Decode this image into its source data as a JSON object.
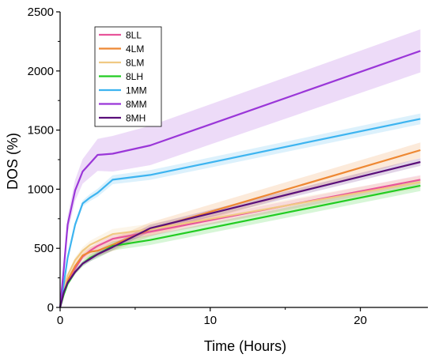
{
  "chart_data": {
    "type": "line",
    "xlabel": "Time (Hours)",
    "ylabel": "DOS (%)",
    "xlim": [
      0,
      24.5
    ],
    "ylim": [
      0,
      2500
    ],
    "xticks": [
      0,
      10,
      20
    ],
    "yticks": [
      0,
      500,
      1000,
      1500,
      2000,
      2500
    ],
    "grid": false,
    "legend_position": "top-left",
    "series": [
      {
        "name": "8LL",
        "color": "#e8549a",
        "band": 30,
        "x": [
          0,
          0.25,
          0.5,
          1,
          1.5,
          2,
          2.5,
          3.5,
          6,
          24
        ],
        "y": [
          0,
          130,
          220,
          330,
          430,
          480,
          520,
          580,
          640,
          1080
        ]
      },
      {
        "name": "4LM",
        "color": "#ee8833",
        "band": 50,
        "x": [
          0,
          0.25,
          0.5,
          1,
          1.5,
          2,
          2.5,
          3.5,
          6,
          24
        ],
        "y": [
          0,
          140,
          230,
          350,
          440,
          470,
          480,
          530,
          660,
          1330
        ]
      },
      {
        "name": "8LM",
        "color": "#f0c983",
        "band": 40,
        "x": [
          0,
          0.25,
          0.5,
          1,
          1.5,
          2,
          2.5,
          3.5,
          6,
          24
        ],
        "y": [
          0,
          160,
          270,
          400,
          480,
          530,
          560,
          620,
          660,
          1060
        ]
      },
      {
        "name": "8LH",
        "color": "#22cc22",
        "band": 35,
        "x": [
          0,
          0.25,
          0.5,
          1,
          1.5,
          2,
          2.5,
          3.5,
          6,
          24
        ],
        "y": [
          0,
          110,
          200,
          300,
          370,
          420,
          450,
          520,
          570,
          1030
        ]
      },
      {
        "name": "1MM",
        "color": "#3db4f0",
        "band": 35,
        "x": [
          0,
          0.25,
          0.5,
          1,
          1.5,
          2,
          2.5,
          3.5,
          6,
          24
        ],
        "y": [
          0,
          200,
          420,
          700,
          880,
          930,
          970,
          1080,
          1120,
          1595
        ]
      },
      {
        "name": "8MM",
        "color": "#9a36d8",
        "band": 140,
        "x": [
          0,
          0.25,
          0.5,
          1,
          1.5,
          2,
          2.5,
          3.5,
          6,
          24
        ],
        "y": [
          0,
          330,
          700,
          990,
          1150,
          1220,
          1290,
          1300,
          1370,
          2170
        ]
      },
      {
        "name": "8MH",
        "color": "#5a0f7a",
        "band": 25,
        "x": [
          0,
          0.25,
          0.5,
          1,
          1.5,
          2,
          2.5,
          3.5,
          6,
          24
        ],
        "y": [
          0,
          130,
          210,
          300,
          370,
          410,
          450,
          510,
          670,
          1230
        ]
      }
    ]
  }
}
